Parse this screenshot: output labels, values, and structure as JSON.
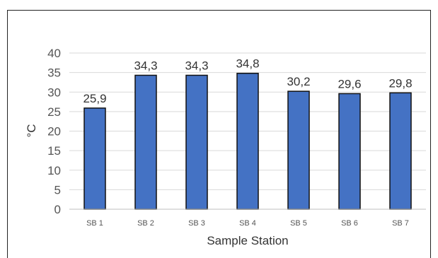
{
  "chart_data": {
    "type": "bar",
    "categories": [
      "SB 1",
      "SB 2",
      "SB 3",
      "SB 4",
      "SB 5",
      "SB 6",
      "SB 7"
    ],
    "values": [
      25.9,
      34.3,
      34.3,
      34.8,
      30.2,
      29.6,
      29.8
    ],
    "data_labels": [
      "25,9",
      "34,3",
      "34,3",
      "34,8",
      "30,2",
      "29,6",
      "29,8"
    ],
    "title": "",
    "xlabel": "Sample Station",
    "ylabel": "°C",
    "ylim": [
      0,
      40
    ],
    "yticks": [
      0,
      5,
      10,
      15,
      20,
      25,
      30,
      35,
      40
    ],
    "grid": true,
    "legend": "none",
    "bar_color": "#4472C4",
    "bar_edge_color": "#111111",
    "grid_color": "#d9d9d9"
  }
}
